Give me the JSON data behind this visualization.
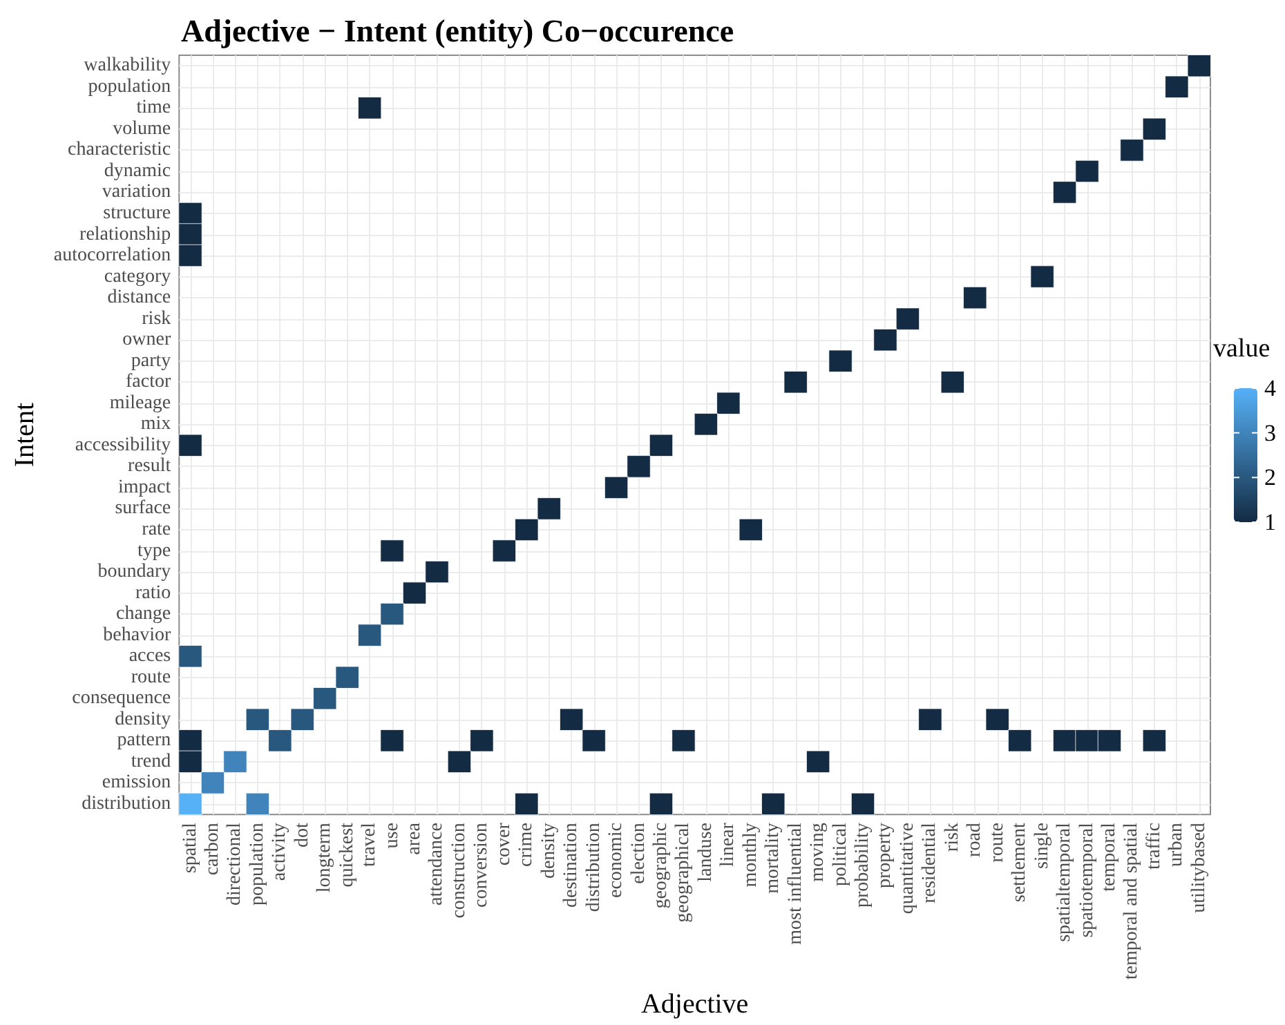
{
  "chart_data": {
    "type": "heatmap",
    "title": "Adjective − Intent (entity) Co−occurence",
    "xlabel": "Adjective",
    "ylabel": "Intent",
    "legend_title": "value",
    "grid": true,
    "categories": [
      "spatial",
      "carbon",
      "directional",
      "population",
      "activity",
      "dot",
      "longterm",
      "quickest",
      "travel",
      "use",
      "area",
      "attendance",
      "construction",
      "conversion",
      "cover",
      "crime",
      "density",
      "destination",
      "distribution",
      "economic",
      "election",
      "geographic",
      "geographical",
      "landuse",
      "linear",
      "monthly",
      "mortality",
      "most influential",
      "moving",
      "political",
      "probability",
      "property",
      "quantitative",
      "residential",
      "risk",
      "road",
      "route",
      "settlement",
      "single",
      "spatialtemporal",
      "spatiotemporal",
      "temporal",
      "temporal and spatial",
      "traffic",
      "urban",
      "utilitybased"
    ],
    "y_categories": [
      "walkability",
      "population",
      "time",
      "volume",
      "characteristic",
      "dynamic",
      "variation",
      "structure",
      "relationship",
      "autocorrelation",
      "category",
      "distance",
      "risk",
      "owner",
      "party",
      "factor",
      "mileage",
      "mix",
      "accessibility",
      "result",
      "impact",
      "surface",
      "rate",
      "type",
      "boundary",
      "ratio",
      "change",
      "behavior",
      "acces",
      "route",
      "consequence",
      "density",
      "pattern",
      "trend",
      "emission",
      "distribution"
    ],
    "clim": [
      1,
      4
    ],
    "cticks": [
      1,
      2,
      3,
      4
    ],
    "colors": [
      "#132b43",
      "#56b1f7"
    ],
    "cells": [
      [
        null,
        null,
        null,
        null,
        null,
        null,
        null,
        null,
        null,
        null,
        null,
        null,
        null,
        null,
        null,
        null,
        null,
        null,
        null,
        null,
        null,
        null,
        null,
        null,
        null,
        null,
        null,
        null,
        null,
        null,
        null,
        null,
        null,
        null,
        null,
        null,
        null,
        null,
        null,
        null,
        null,
        null,
        null,
        null,
        null,
        1
      ],
      [
        null,
        null,
        null,
        null,
        null,
        null,
        null,
        null,
        null,
        null,
        null,
        null,
        null,
        null,
        null,
        null,
        null,
        null,
        null,
        null,
        null,
        null,
        null,
        null,
        null,
        null,
        null,
        null,
        null,
        null,
        null,
        null,
        null,
        null,
        null,
        null,
        null,
        null,
        null,
        null,
        null,
        null,
        null,
        null,
        1,
        null
      ],
      [
        null,
        null,
        null,
        null,
        null,
        null,
        null,
        null,
        1,
        null,
        null,
        null,
        null,
        null,
        null,
        null,
        null,
        null,
        null,
        null,
        null,
        null,
        null,
        null,
        null,
        null,
        null,
        null,
        null,
        null,
        null,
        null,
        null,
        null,
        null,
        null,
        null,
        null,
        null,
        null,
        null,
        null,
        null,
        null,
        null,
        null
      ],
      [
        null,
        null,
        null,
        null,
        null,
        null,
        null,
        null,
        null,
        null,
        null,
        null,
        null,
        null,
        null,
        null,
        null,
        null,
        null,
        null,
        null,
        null,
        null,
        null,
        null,
        null,
        null,
        null,
        null,
        null,
        null,
        null,
        null,
        null,
        null,
        null,
        null,
        null,
        null,
        null,
        null,
        null,
        null,
        1,
        null,
        null
      ],
      [
        null,
        null,
        null,
        null,
        null,
        null,
        null,
        null,
        null,
        null,
        null,
        null,
        null,
        null,
        null,
        null,
        null,
        null,
        null,
        null,
        null,
        null,
        null,
        null,
        null,
        null,
        null,
        null,
        null,
        null,
        null,
        null,
        null,
        null,
        null,
        null,
        null,
        null,
        null,
        null,
        null,
        null,
        1,
        null,
        null,
        null
      ],
      [
        null,
        null,
        null,
        null,
        null,
        null,
        null,
        null,
        null,
        null,
        null,
        null,
        null,
        null,
        null,
        null,
        null,
        null,
        null,
        null,
        null,
        null,
        null,
        null,
        null,
        null,
        null,
        null,
        null,
        null,
        null,
        null,
        null,
        null,
        null,
        null,
        null,
        null,
        null,
        null,
        1,
        null,
        null,
        null,
        null,
        null
      ],
      [
        null,
        null,
        null,
        null,
        null,
        null,
        null,
        null,
        null,
        null,
        null,
        null,
        null,
        null,
        null,
        null,
        null,
        null,
        null,
        null,
        null,
        null,
        null,
        null,
        null,
        null,
        null,
        null,
        null,
        null,
        null,
        null,
        null,
        null,
        null,
        null,
        null,
        null,
        null,
        1,
        null,
        null,
        null,
        null,
        null,
        null
      ],
      [
        1,
        null,
        null,
        null,
        null,
        null,
        null,
        null,
        null,
        null,
        null,
        null,
        null,
        null,
        null,
        null,
        null,
        null,
        null,
        null,
        null,
        null,
        null,
        null,
        null,
        null,
        null,
        null,
        null,
        null,
        null,
        null,
        null,
        null,
        null,
        null,
        null,
        null,
        null,
        null,
        null,
        null,
        null,
        null,
        null,
        null
      ],
      [
        1,
        null,
        null,
        null,
        null,
        null,
        null,
        null,
        null,
        null,
        null,
        null,
        null,
        null,
        null,
        null,
        null,
        null,
        null,
        null,
        null,
        null,
        null,
        null,
        null,
        null,
        null,
        null,
        null,
        null,
        null,
        null,
        null,
        null,
        null,
        null,
        null,
        null,
        null,
        null,
        null,
        null,
        null,
        null,
        null,
        null
      ],
      [
        1,
        null,
        null,
        null,
        null,
        null,
        null,
        null,
        null,
        null,
        null,
        null,
        null,
        null,
        null,
        null,
        null,
        null,
        null,
        null,
        null,
        null,
        null,
        null,
        null,
        null,
        null,
        null,
        null,
        null,
        null,
        null,
        null,
        null,
        null,
        null,
        null,
        null,
        null,
        null,
        null,
        null,
        null,
        null,
        null,
        null
      ],
      [
        null,
        null,
        null,
        null,
        null,
        null,
        null,
        null,
        null,
        null,
        null,
        null,
        null,
        null,
        null,
        null,
        null,
        null,
        null,
        null,
        null,
        null,
        null,
        null,
        null,
        null,
        null,
        null,
        null,
        null,
        null,
        null,
        null,
        null,
        null,
        null,
        null,
        null,
        1,
        null,
        null,
        null,
        null,
        null,
        null,
        null
      ],
      [
        null,
        null,
        null,
        null,
        null,
        null,
        null,
        null,
        null,
        null,
        null,
        null,
        null,
        null,
        null,
        null,
        null,
        null,
        null,
        null,
        null,
        null,
        null,
        null,
        null,
        null,
        null,
        null,
        null,
        null,
        null,
        null,
        null,
        null,
        null,
        1,
        null,
        null,
        null,
        null,
        null,
        null,
        null,
        null,
        null,
        null
      ],
      [
        null,
        null,
        null,
        null,
        null,
        null,
        null,
        null,
        null,
        null,
        null,
        null,
        null,
        null,
        null,
        null,
        null,
        null,
        null,
        null,
        null,
        null,
        null,
        null,
        null,
        null,
        null,
        null,
        null,
        null,
        null,
        null,
        1,
        null,
        null,
        null,
        null,
        null,
        null,
        null,
        null,
        null,
        null,
        null,
        null,
        null
      ],
      [
        null,
        null,
        null,
        null,
        null,
        null,
        null,
        null,
        null,
        null,
        null,
        null,
        null,
        null,
        null,
        null,
        null,
        null,
        null,
        null,
        null,
        null,
        null,
        null,
        null,
        null,
        null,
        null,
        null,
        null,
        null,
        1,
        null,
        null,
        null,
        null,
        null,
        null,
        null,
        null,
        null,
        null,
        null,
        null,
        null,
        null
      ],
      [
        null,
        null,
        null,
        null,
        null,
        null,
        null,
        null,
        null,
        null,
        null,
        null,
        null,
        null,
        null,
        null,
        null,
        null,
        null,
        null,
        null,
        null,
        null,
        null,
        null,
        null,
        null,
        null,
        null,
        1,
        null,
        null,
        null,
        null,
        null,
        null,
        null,
        null,
        null,
        null,
        null,
        null,
        null,
        null,
        null,
        null
      ],
      [
        null,
        null,
        null,
        null,
        null,
        null,
        null,
        null,
        null,
        null,
        null,
        null,
        null,
        null,
        null,
        null,
        null,
        null,
        null,
        null,
        null,
        null,
        null,
        null,
        null,
        null,
        null,
        1,
        null,
        null,
        null,
        null,
        null,
        null,
        1,
        null,
        null,
        null,
        null,
        null,
        null,
        null,
        null,
        null,
        null,
        null
      ],
      [
        null,
        null,
        null,
        null,
        null,
        null,
        null,
        null,
        null,
        null,
        null,
        null,
        null,
        null,
        null,
        null,
        null,
        null,
        null,
        null,
        null,
        null,
        null,
        null,
        1,
        null,
        null,
        null,
        null,
        null,
        null,
        null,
        null,
        null,
        null,
        null,
        null,
        null,
        null,
        null,
        null,
        null,
        null,
        null,
        null,
        null
      ],
      [
        null,
        null,
        null,
        null,
        null,
        null,
        null,
        null,
        null,
        null,
        null,
        null,
        null,
        null,
        null,
        null,
        null,
        null,
        null,
        null,
        null,
        null,
        null,
        1,
        null,
        null,
        null,
        null,
        null,
        null,
        null,
        null,
        null,
        null,
        null,
        null,
        null,
        null,
        null,
        null,
        null,
        null,
        null,
        null,
        null,
        null
      ],
      [
        1,
        null,
        null,
        null,
        null,
        null,
        null,
        null,
        null,
        null,
        null,
        null,
        null,
        null,
        null,
        null,
        null,
        null,
        null,
        null,
        null,
        1,
        null,
        null,
        null,
        null,
        null,
        null,
        null,
        null,
        null,
        null,
        null,
        null,
        null,
        null,
        null,
        null,
        null,
        null,
        null,
        null,
        null,
        null,
        null,
        null
      ],
      [
        null,
        null,
        null,
        null,
        null,
        null,
        null,
        null,
        null,
        null,
        null,
        null,
        null,
        null,
        null,
        null,
        null,
        null,
        null,
        null,
        1,
        null,
        null,
        null,
        null,
        null,
        null,
        null,
        null,
        null,
        null,
        null,
        null,
        null,
        null,
        null,
        null,
        null,
        null,
        null,
        null,
        null,
        null,
        null,
        null,
        null
      ],
      [
        null,
        null,
        null,
        null,
        null,
        null,
        null,
        null,
        null,
        null,
        null,
        null,
        null,
        null,
        null,
        null,
        null,
        null,
        null,
        1,
        null,
        null,
        null,
        null,
        null,
        null,
        null,
        null,
        null,
        null,
        null,
        null,
        null,
        null,
        null,
        null,
        null,
        null,
        null,
        null,
        null,
        null,
        null,
        null,
        null,
        null
      ],
      [
        null,
        null,
        null,
        null,
        null,
        null,
        null,
        null,
        null,
        null,
        null,
        null,
        null,
        null,
        null,
        null,
        1,
        null,
        null,
        null,
        null,
        null,
        null,
        null,
        null,
        null,
        null,
        null,
        null,
        null,
        null,
        null,
        null,
        null,
        null,
        null,
        null,
        null,
        null,
        null,
        null,
        null,
        null,
        null,
        null,
        null
      ],
      [
        null,
        null,
        null,
        null,
        null,
        null,
        null,
        null,
        null,
        null,
        null,
        null,
        null,
        null,
        null,
        1,
        null,
        null,
        null,
        null,
        null,
        null,
        null,
        null,
        null,
        1,
        null,
        null,
        null,
        null,
        null,
        null,
        null,
        null,
        null,
        null,
        null,
        null,
        null,
        null,
        null,
        null,
        null,
        null,
        null,
        null
      ],
      [
        null,
        null,
        null,
        null,
        null,
        null,
        null,
        null,
        null,
        1,
        null,
        null,
        null,
        null,
        1,
        null,
        null,
        null,
        null,
        null,
        null,
        null,
        null,
        null,
        null,
        null,
        null,
        null,
        null,
        null,
        null,
        null,
        null,
        null,
        null,
        null,
        null,
        null,
        null,
        null,
        null,
        null,
        null,
        null,
        null,
        null
      ],
      [
        null,
        null,
        null,
        null,
        null,
        null,
        null,
        null,
        null,
        null,
        null,
        1,
        null,
        null,
        null,
        null,
        null,
        null,
        null,
        null,
        null,
        null,
        null,
        null,
        null,
        null,
        null,
        null,
        null,
        null,
        null,
        null,
        null,
        null,
        null,
        null,
        null,
        null,
        null,
        null,
        null,
        null,
        null,
        null,
        null,
        null
      ],
      [
        null,
        null,
        null,
        null,
        null,
        null,
        null,
        null,
        null,
        null,
        1,
        null,
        null,
        null,
        null,
        null,
        null,
        null,
        null,
        null,
        null,
        null,
        null,
        null,
        null,
        null,
        null,
        null,
        null,
        null,
        null,
        null,
        null,
        null,
        null,
        null,
        null,
        null,
        null,
        null,
        null,
        null,
        null,
        null,
        null,
        null
      ],
      [
        null,
        null,
        null,
        null,
        null,
        null,
        null,
        null,
        null,
        2,
        null,
        null,
        null,
        null,
        null,
        null,
        null,
        null,
        null,
        null,
        null,
        null,
        null,
        null,
        null,
        null,
        null,
        null,
        null,
        null,
        null,
        null,
        null,
        null,
        null,
        null,
        null,
        null,
        null,
        null,
        null,
        null,
        null,
        null,
        null,
        null
      ],
      [
        null,
        null,
        null,
        null,
        null,
        null,
        null,
        null,
        2,
        null,
        null,
        null,
        null,
        null,
        null,
        null,
        null,
        null,
        null,
        null,
        null,
        null,
        null,
        null,
        null,
        null,
        null,
        null,
        null,
        null,
        null,
        null,
        null,
        null,
        null,
        null,
        null,
        null,
        null,
        null,
        null,
        null,
        null,
        null,
        null,
        null
      ],
      [
        2,
        null,
        null,
        null,
        null,
        null,
        null,
        null,
        null,
        null,
        null,
        null,
        null,
        null,
        null,
        null,
        null,
        null,
        null,
        null,
        null,
        null,
        null,
        null,
        null,
        null,
        null,
        null,
        null,
        null,
        null,
        null,
        null,
        null,
        null,
        null,
        null,
        null,
        null,
        null,
        null,
        null,
        null,
        null,
        null,
        null
      ],
      [
        null,
        null,
        null,
        null,
        null,
        null,
        null,
        2,
        null,
        null,
        null,
        null,
        null,
        null,
        null,
        null,
        null,
        null,
        null,
        null,
        null,
        null,
        null,
        null,
        null,
        null,
        null,
        null,
        null,
        null,
        null,
        null,
        null,
        null,
        null,
        null,
        null,
        null,
        null,
        null,
        null,
        null,
        null,
        null,
        null,
        null
      ],
      [
        null,
        null,
        null,
        null,
        null,
        null,
        2,
        null,
        null,
        null,
        null,
        null,
        null,
        null,
        null,
        null,
        null,
        null,
        null,
        null,
        null,
        null,
        null,
        null,
        null,
        null,
        null,
        null,
        null,
        null,
        null,
        null,
        null,
        null,
        null,
        null,
        null,
        null,
        null,
        null,
        null,
        null,
        null,
        null,
        null,
        null
      ],
      [
        null,
        null,
        null,
        2,
        null,
        2,
        null,
        null,
        null,
        null,
        null,
        null,
        null,
        null,
        null,
        null,
        null,
        1,
        null,
        null,
        null,
        null,
        null,
        null,
        null,
        null,
        null,
        null,
        null,
        null,
        null,
        null,
        null,
        1,
        null,
        null,
        1,
        null,
        null,
        null,
        null,
        null,
        null,
        null,
        null,
        null
      ],
      [
        1,
        null,
        null,
        null,
        2,
        null,
        null,
        null,
        null,
        1,
        null,
        null,
        null,
        1,
        null,
        null,
        null,
        null,
        1,
        null,
        null,
        null,
        1,
        null,
        null,
        null,
        null,
        null,
        null,
        null,
        null,
        null,
        null,
        null,
        null,
        null,
        null,
        1,
        null,
        1,
        1,
        1,
        null,
        1,
        null,
        null
      ],
      [
        1,
        null,
        3,
        null,
        null,
        null,
        null,
        null,
        null,
        null,
        null,
        null,
        1,
        null,
        null,
        null,
        null,
        null,
        null,
        null,
        null,
        null,
        null,
        null,
        null,
        null,
        null,
        null,
        1,
        null,
        null,
        null,
        null,
        null,
        null,
        null,
        null,
        null,
        null,
        null,
        null,
        null,
        null,
        null,
        null,
        null
      ],
      [
        null,
        3,
        null,
        null,
        null,
        null,
        null,
        null,
        null,
        null,
        null,
        null,
        null,
        null,
        null,
        null,
        null,
        null,
        null,
        null,
        null,
        null,
        null,
        null,
        null,
        null,
        null,
        null,
        null,
        null,
        null,
        null,
        null,
        null,
        null,
        null,
        null,
        null,
        null,
        null,
        null,
        null,
        null,
        null,
        null,
        null
      ],
      [
        4,
        null,
        null,
        3,
        null,
        null,
        null,
        null,
        null,
        null,
        null,
        null,
        null,
        null,
        null,
        1,
        null,
        null,
        null,
        null,
        null,
        1,
        null,
        null,
        null,
        null,
        1,
        null,
        null,
        null,
        1,
        null,
        null,
        null,
        null,
        null,
        null,
        null,
        null,
        null,
        null,
        null,
        null,
        null,
        null,
        null
      ]
    ]
  }
}
